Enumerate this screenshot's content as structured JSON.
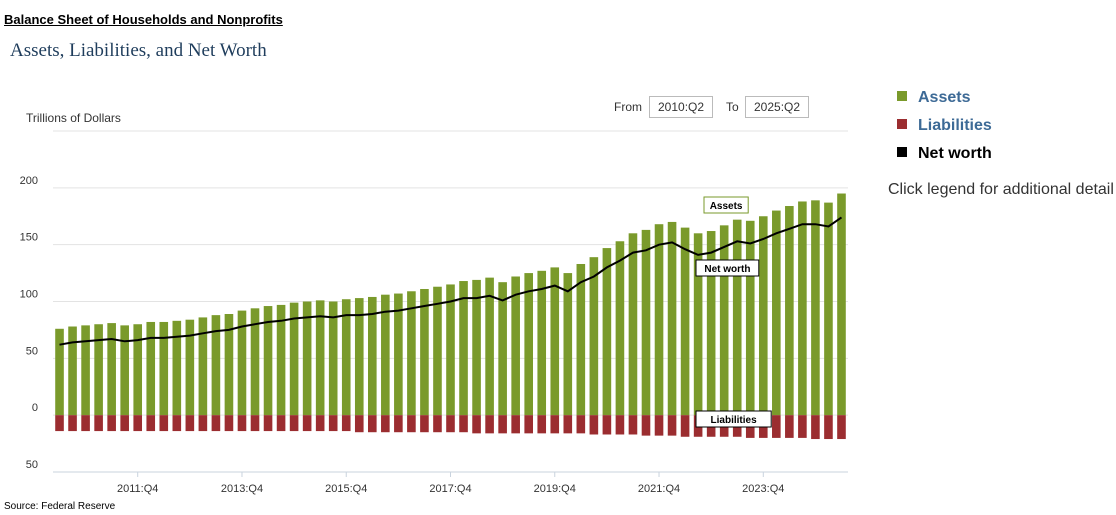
{
  "header": {
    "title": "Balance Sheet of Households and Nonprofits"
  },
  "controls": {
    "from_label": "From",
    "from_value": "2010:Q2",
    "to_label": "To",
    "to_value": "2025:Q2"
  },
  "chart_data": {
    "type": "bar",
    "title": "Assets, Liabilities, and Net Worth",
    "y_label": "Trillions of Dollars",
    "note": "Click legend for additional detail",
    "source": "Source: Federal Reserve",
    "categories": [
      null,
      null,
      null,
      null,
      null,
      null,
      "2011:Q4",
      null,
      null,
      null,
      null,
      null,
      null,
      null,
      "2013:Q4",
      null,
      null,
      null,
      null,
      null,
      null,
      null,
      "2015:Q4",
      null,
      null,
      null,
      null,
      null,
      null,
      null,
      "2017:Q4",
      null,
      null,
      null,
      null,
      null,
      null,
      null,
      "2019:Q4",
      null,
      null,
      null,
      null,
      null,
      null,
      null,
      "2021:Q4",
      null,
      null,
      null,
      null,
      null,
      null,
      null,
      "2023:Q4",
      null,
      null,
      null,
      null,
      null,
      null
    ],
    "series": [
      {
        "name": "Assets",
        "color": "#7a9a2b",
        "type": "bar",
        "values": [
          76,
          78,
          79,
          80,
          81,
          79,
          80,
          82,
          82,
          83,
          84,
          86,
          88,
          89,
          92,
          94,
          96,
          97,
          99,
          100,
          101,
          100,
          102,
          103,
          104,
          106,
          107,
          109,
          111,
          113,
          115,
          118,
          119,
          121,
          117,
          122,
          125,
          127,
          130,
          125,
          133,
          139,
          147,
          153,
          160,
          163,
          168,
          170,
          165,
          160,
          162,
          167,
          172,
          171,
          175,
          180,
          184,
          188,
          189,
          187,
          195
        ]
      },
      {
        "name": "Liabilities",
        "color": "#9b2d30",
        "type": "bar",
        "values": [
          -14,
          -14,
          -14,
          -14,
          -14,
          -14,
          -14,
          -14,
          -14,
          -14,
          -14,
          -14,
          -14,
          -14,
          -14,
          -14,
          -14,
          -14,
          -14,
          -14,
          -14,
          -14,
          -14,
          -15,
          -15,
          -15,
          -15,
          -15,
          -15,
          -15,
          -15,
          -15,
          -16,
          -16,
          -16,
          -16,
          -16,
          -16,
          -16,
          -16,
          -16,
          -17,
          -17,
          -17,
          -17,
          -18,
          -18,
          -18,
          -19,
          -19,
          -19,
          -19,
          -19,
          -20,
          -20,
          -20,
          -20,
          -20,
          -21,
          -21,
          -21
        ]
      },
      {
        "name": "Net worth",
        "color": "#000000",
        "type": "line",
        "values": [
          62,
          64,
          65,
          66,
          67,
          65,
          66,
          68,
          68,
          69,
          70,
          72,
          74,
          75,
          78,
          80,
          82,
          83,
          85,
          86,
          87,
          86,
          88,
          88,
          89,
          91,
          92,
          94,
          96,
          98,
          100,
          103,
          103,
          105,
          101,
          106,
          109,
          111,
          114,
          109,
          117,
          122,
          130,
          136,
          143,
          145,
          150,
          152,
          146,
          141,
          143,
          148,
          153,
          151,
          155,
          160,
          164,
          168,
          168,
          166,
          174
        ]
      }
    ],
    "annotations": [
      "Assets",
      "Net worth",
      "Liabilities"
    ],
    "ylim": [
      -50,
      250
    ],
    "yticks": [
      {
        "value": -50,
        "label": "50"
      },
      0,
      50,
      100,
      150,
      200
    ],
    "grid": true,
    "legend": "right"
  }
}
